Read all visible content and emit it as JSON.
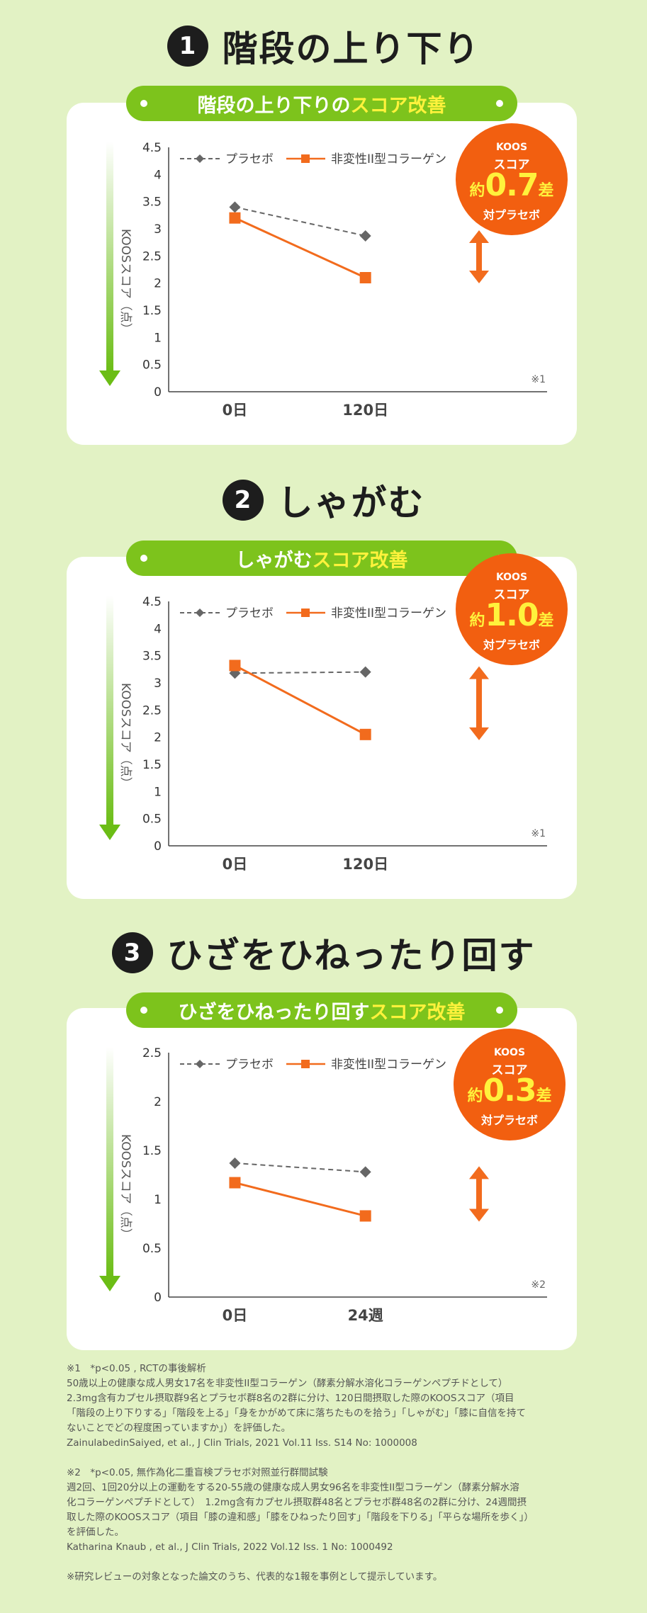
{
  "sections": [
    {
      "number": "1",
      "title": "階段の上り下り",
      "pill_main": "階段の上り下りの",
      "pill_highlight": "スコア改善",
      "koos": {
        "line1": "KOOS",
        "line2": "スコア",
        "prefix": "約",
        "value": "0.7",
        "suffix": "差",
        "line4": "対プラセボ"
      },
      "ylabel": "KOOSスコア（点）",
      "footnote_mark": "※1"
    },
    {
      "number": "2",
      "title": "しゃがむ",
      "pill_main": "しゃがむ",
      "pill_highlight": "スコア改善",
      "koos": {
        "line1": "KOOS",
        "line2": "スコア",
        "prefix": "約",
        "value": "1.0",
        "suffix": "差",
        "line4": "対プラセボ"
      },
      "ylabel": "KOOSスコア（点）",
      "footnote_mark": "※1"
    },
    {
      "number": "3",
      "title": "ひざをひねったり回す",
      "pill_main": "ひざをひねったり回す",
      "pill_highlight": "スコア改善",
      "koos": {
        "line1": "KOOS",
        "line2": "スコア",
        "prefix": "約",
        "value": "0.3",
        "suffix": "差",
        "line4": "対プラセボ"
      },
      "ylabel": "KOOSスコア（点）",
      "footnote_mark": "※2"
    }
  ],
  "chart_data": [
    {
      "type": "line",
      "categories": [
        "0日",
        "120日"
      ],
      "series": [
        {
          "name": "プラセボ",
          "values": [
            3.4,
            2.87
          ],
          "color": "#666666",
          "style": "dashed",
          "marker": "diamond"
        },
        {
          "name": "非変性II型コラーゲン",
          "values": [
            3.2,
            2.1
          ],
          "color": "#f26b1d",
          "style": "solid",
          "marker": "square"
        }
      ],
      "yticks": [
        "0",
        "0.5",
        "1",
        "1.5",
        "2",
        "2.5",
        "3",
        "3.5",
        "4",
        "4.5"
      ],
      "ylim": [
        0,
        4.5
      ],
      "ylabel": "KOOSスコア（点）",
      "legend": "top"
    },
    {
      "type": "line",
      "categories": [
        "0日",
        "120日"
      ],
      "series": [
        {
          "name": "プラセボ",
          "values": [
            3.18,
            3.2
          ],
          "color": "#666666",
          "style": "dashed",
          "marker": "diamond"
        },
        {
          "name": "非変性II型コラーゲン",
          "values": [
            3.32,
            2.05
          ],
          "color": "#f26b1d",
          "style": "solid",
          "marker": "square"
        }
      ],
      "yticks": [
        "0",
        "0.5",
        "1",
        "1.5",
        "2",
        "2.5",
        "3",
        "3.5",
        "4",
        "4.5"
      ],
      "ylim": [
        0,
        4.5
      ],
      "ylabel": "KOOSスコア（点）",
      "legend": "top"
    },
    {
      "type": "line",
      "categories": [
        "0日",
        "24週"
      ],
      "series": [
        {
          "name": "プラセボ",
          "values": [
            1.37,
            1.28
          ],
          "color": "#666666",
          "style": "dashed",
          "marker": "diamond"
        },
        {
          "name": "非変性II型コラーゲン",
          "values": [
            1.17,
            0.83
          ],
          "color": "#f26b1d",
          "style": "solid",
          "marker": "square"
        }
      ],
      "yticks": [
        "0",
        "0.5",
        "1",
        "1.5",
        "2",
        "2.5"
      ],
      "ylim": [
        0,
        2.5
      ],
      "ylabel": "KOOSスコア（点）",
      "legend": "top"
    }
  ],
  "notes": {
    "n1_head": "※1　*p<0.05 , RCTの事後解析",
    "n1_body1": "50歳以上の健康な成人男女17名を非変性II型コラーゲン（酵素分解水溶化コラーゲンペプチドとして）",
    "n1_body2": "2.3mg含有カプセル摂取群9名とプラセボ群8名の2群に分け、120日間摂取した際のKOOSスコア（項目",
    "n1_body3": "「階段の上り下りする」「階段を上る」「身をかがめて床に落ちたものを拾う」「しゃがむ」「膝に自信を持て",
    "n1_body4": "ないことでどの程度困っていますか」）を評価した。",
    "n1_cite": "ZainulabedinSaiyed, et al., J Clin Trials, 2021 Vol.11 Iss. S14 No: 1000008",
    "n2_head": "※2　*p<0.05, 無作為化二重盲検プラセボ対照並行群間試験",
    "n2_body1": "週2回、1回20分以上の運動をする20-55歳の健康な成人男女96名を非変性II型コラーゲン（酵素分解水溶",
    "n2_body2": "化コラーゲンペプチドとして）　1.2mg含有カプセル摂取群48名とプラセボ群48名の2群に分け、24週間摂",
    "n2_body3": "取した際のKOOSスコア（項目「膝の違和感」「膝をひねったり回す」「階段を下りる」「平らな場所を歩く」）",
    "n2_body4": "を評価した。",
    "n2_cite": "Katharina Knaub , et al., J Clin Trials, 2022 Vol.12 Iss. 1 No: 1000492",
    "final": "※研究レビューの対象となった論文のうち、代表的な1報を事例として提示しています。"
  }
}
